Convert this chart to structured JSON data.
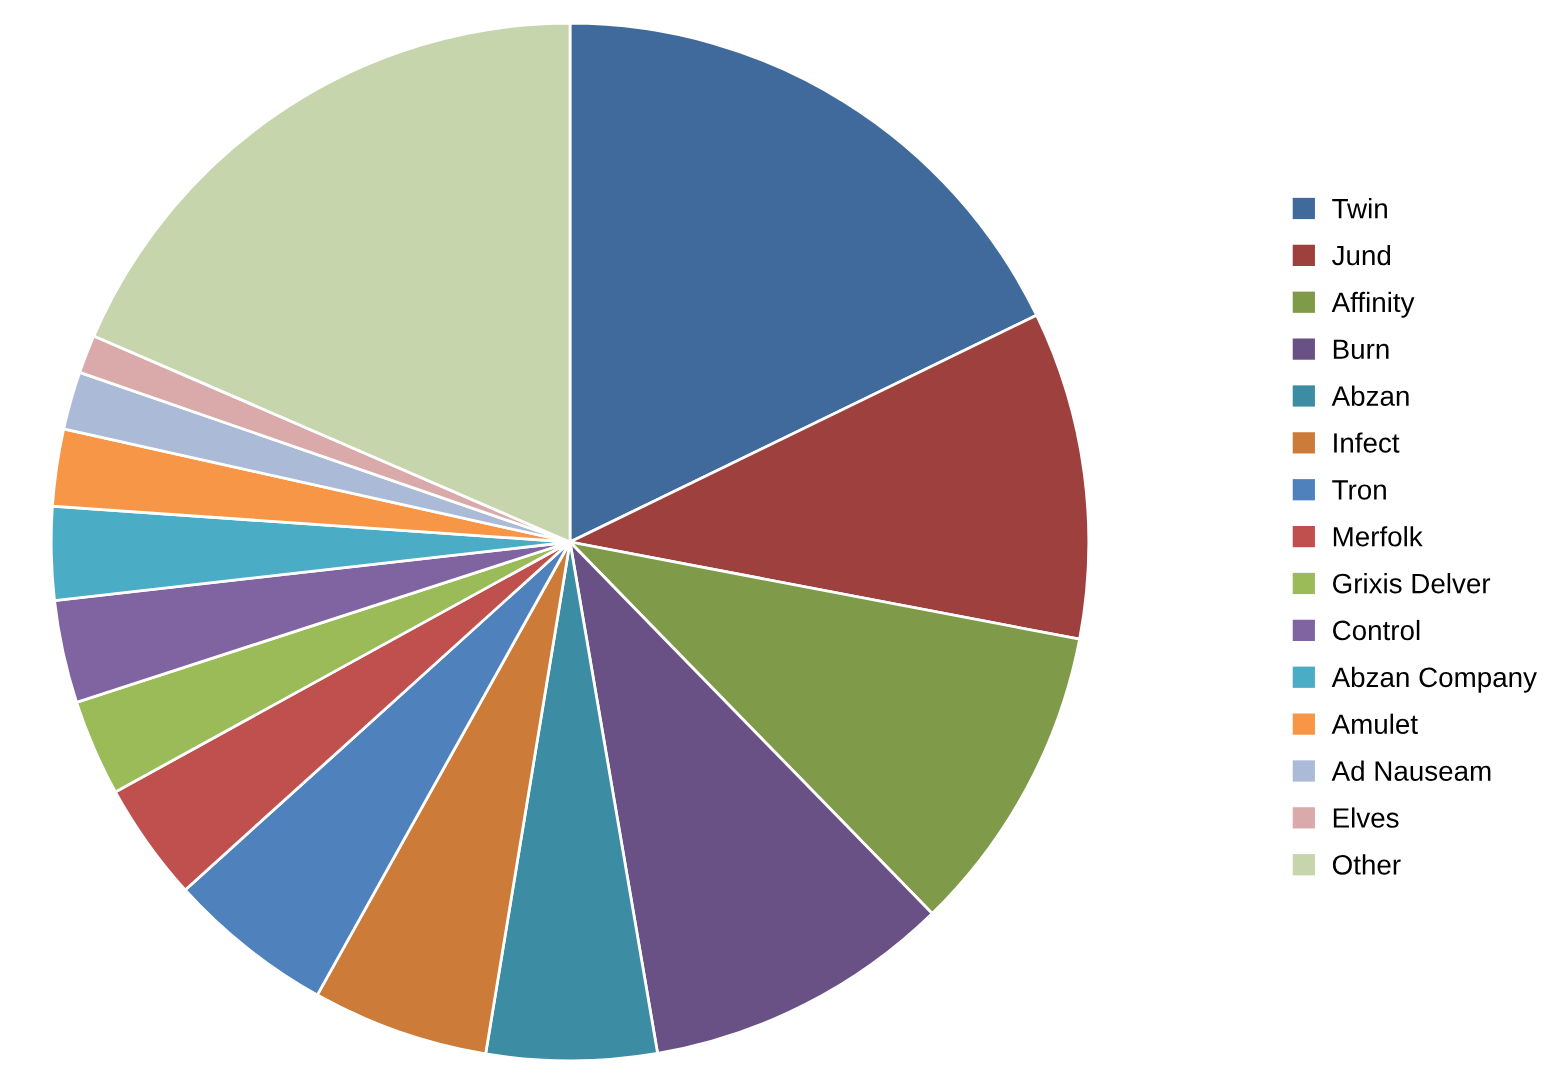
{
  "chart_data": {
    "type": "pie",
    "categories": [
      "Twin",
      "Jund",
      "Affinity",
      "Burn",
      "Abzan",
      "Infect",
      "Tron",
      "Merfolk",
      "Grixis Delver",
      "Control",
      "Abzan Company",
      "Amulet",
      "Ad Nauseam",
      "Elves",
      "Other"
    ],
    "values": [
      17.8,
      10.2,
      9.7,
      9.6,
      5.3,
      5.5,
      5.2,
      3.7,
      3.0,
      3.2,
      2.9,
      2.4,
      1.8,
      1.2,
      18.5
    ],
    "colors": [
      "#416a9c",
      "#9e413e",
      "#7f9a48",
      "#695185",
      "#3c8da3",
      "#cc7b38",
      "#4f81bd",
      "#c0504d",
      "#9bbb59",
      "#8064a2",
      "#4bacc6",
      "#f79646",
      "#aabad7",
      "#d9aaa9",
      "#c6d5ac"
    ],
    "legend": "right"
  }
}
